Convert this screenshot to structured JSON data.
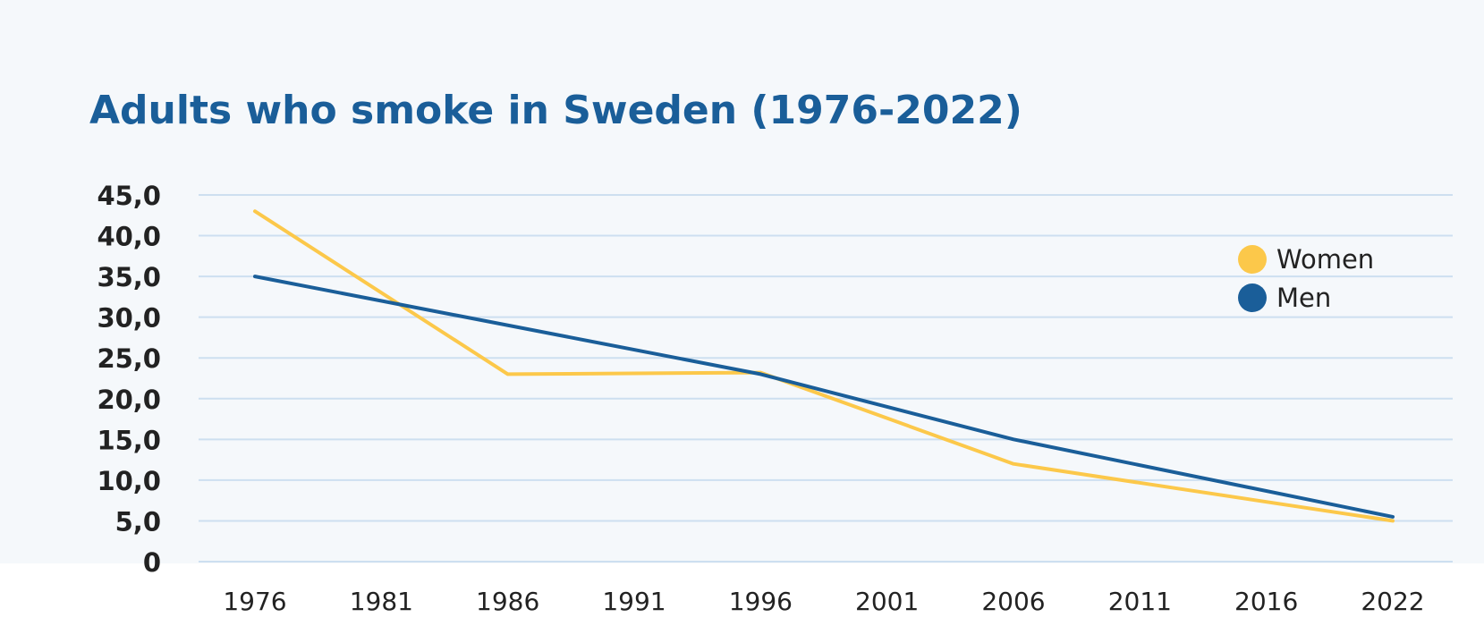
{
  "chart_data": {
    "type": "line",
    "title": "Adults who smoke in Sweden (1976-2022)",
    "xlabel": "",
    "ylabel": "",
    "x": [
      "1976",
      "1981",
      "1986",
      "1991",
      "1996",
      "2001",
      "2006",
      "2011",
      "2016",
      "2022"
    ],
    "y_ticks": [
      "0",
      "5,0",
      "10,0",
      "15,0",
      "20,0",
      "25,0",
      "30,0",
      "35,0",
      "40,0",
      "45,0"
    ],
    "ylim": [
      0,
      45
    ],
    "grid": true,
    "legend_position": "top-right",
    "series": [
      {
        "name": "Women",
        "color": "#fcc84a",
        "points": [
          {
            "x": "1976",
            "y": 43.0
          },
          {
            "x": "1986",
            "y": 23.0
          },
          {
            "x": "1996",
            "y": 23.2
          },
          {
            "x": "2006",
            "y": 12.0
          },
          {
            "x": "2022",
            "y": 5.0
          }
        ]
      },
      {
        "name": "Men",
        "color": "#1a5e99",
        "points": [
          {
            "x": "1976",
            "y": 35.0
          },
          {
            "x": "1996",
            "y": 23.0
          },
          {
            "x": "2006",
            "y": 15.0
          },
          {
            "x": "2022",
            "y": 5.5
          }
        ]
      }
    ]
  },
  "colors": {
    "background": "#f5f8fb",
    "grid": "#cddff0",
    "title": "#1a5e99",
    "text": "#222222"
  }
}
